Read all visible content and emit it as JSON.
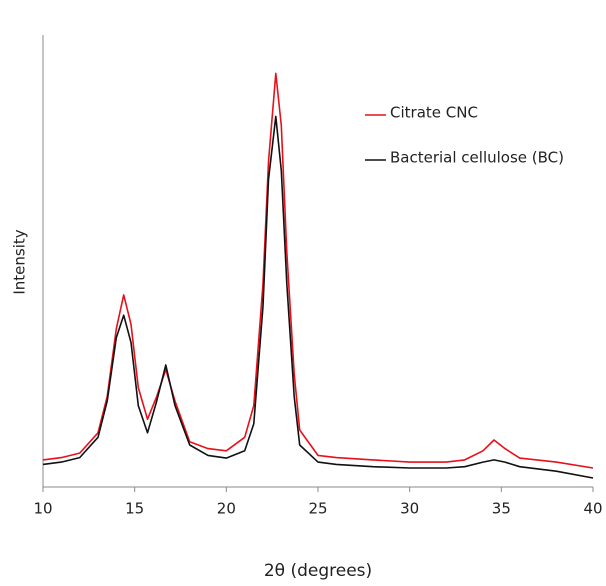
{
  "chart_data": {
    "type": "line",
    "x_label": "2θ (degrees)",
    "y_label": "Intensity",
    "x": [
      10,
      11,
      12,
      13,
      13.5,
      14,
      14.4,
      14.8,
      15.2,
      15.7,
      16.2,
      16.7,
      17.2,
      18,
      19,
      20,
      21,
      21.5,
      22,
      22.3,
      22.7,
      23,
      23.3,
      23.7,
      24,
      25,
      26,
      28,
      30,
      32,
      33,
      34,
      34.6,
      35.2,
      36,
      38,
      40
    ],
    "series": [
      {
        "name": "Citrate CNC",
        "color": "#e8101a",
        "values": [
          6,
          6.5,
          7.5,
          12,
          20,
          35,
          42.5,
          36,
          22,
          15,
          20,
          26,
          19,
          10,
          8.5,
          8,
          11,
          18,
          45,
          72,
          91.5,
          80,
          52,
          25,
          12.6,
          7,
          6.5,
          6,
          5.5,
          5.5,
          6,
          8,
          10.4,
          8.5,
          6.4,
          5.5,
          4.2
        ]
      },
      {
        "name": "Bacterial cellulose (BC)",
        "color": "#111111",
        "values": [
          5,
          5.5,
          6.5,
          11,
          19,
          33,
          38,
          32,
          18,
          12,
          19,
          27,
          18,
          9.3,
          7,
          6.4,
          8,
          14,
          40,
          68,
          82,
          70,
          45,
          20,
          9.3,
          5.5,
          5,
          4.5,
          4.2,
          4.2,
          4.5,
          5.5,
          6,
          5.5,
          4.5,
          3.5,
          2
        ]
      }
    ],
    "xlim": [
      10,
      40
    ],
    "xticks": [
      10,
      15,
      20,
      25,
      30,
      35,
      40
    ],
    "ylim": [
      0,
      100
    ]
  }
}
